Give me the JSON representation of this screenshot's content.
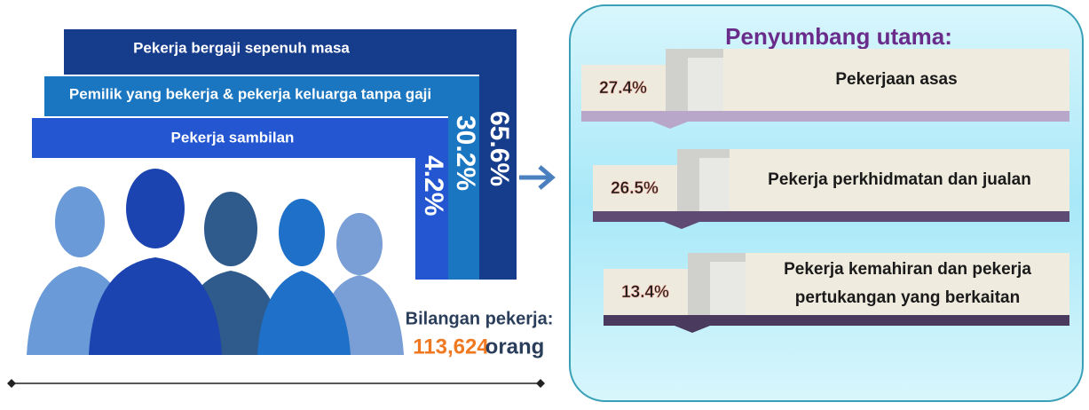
{
  "bars": [
    {
      "label": "Pekerja bergaji sepenuh masa",
      "share": "65.6%"
    },
    {
      "label": "Pemilik yang bekerja & pekerja keluarga tanpa gaji",
      "share": "30.2%"
    },
    {
      "label": "Pekerja  sambilan",
      "share": "4.2%"
    }
  ],
  "workers": {
    "label": "Bilangan pekerja:",
    "count": "113,624",
    "unit": "orang"
  },
  "panel": {
    "title": "Penyumbang utama:",
    "items": [
      {
        "share": "27.4%",
        "lines": [
          "Pekerjaan asas"
        ]
      },
      {
        "share": "26.5%",
        "lines": [
          "Pekerja perkhidmatan dan jualan"
        ]
      },
      {
        "share": "13.4%",
        "lines": [
          "Pekerja kemahiran dan pekerja",
          "pertukangan yang berkaitan"
        ]
      }
    ]
  }
}
